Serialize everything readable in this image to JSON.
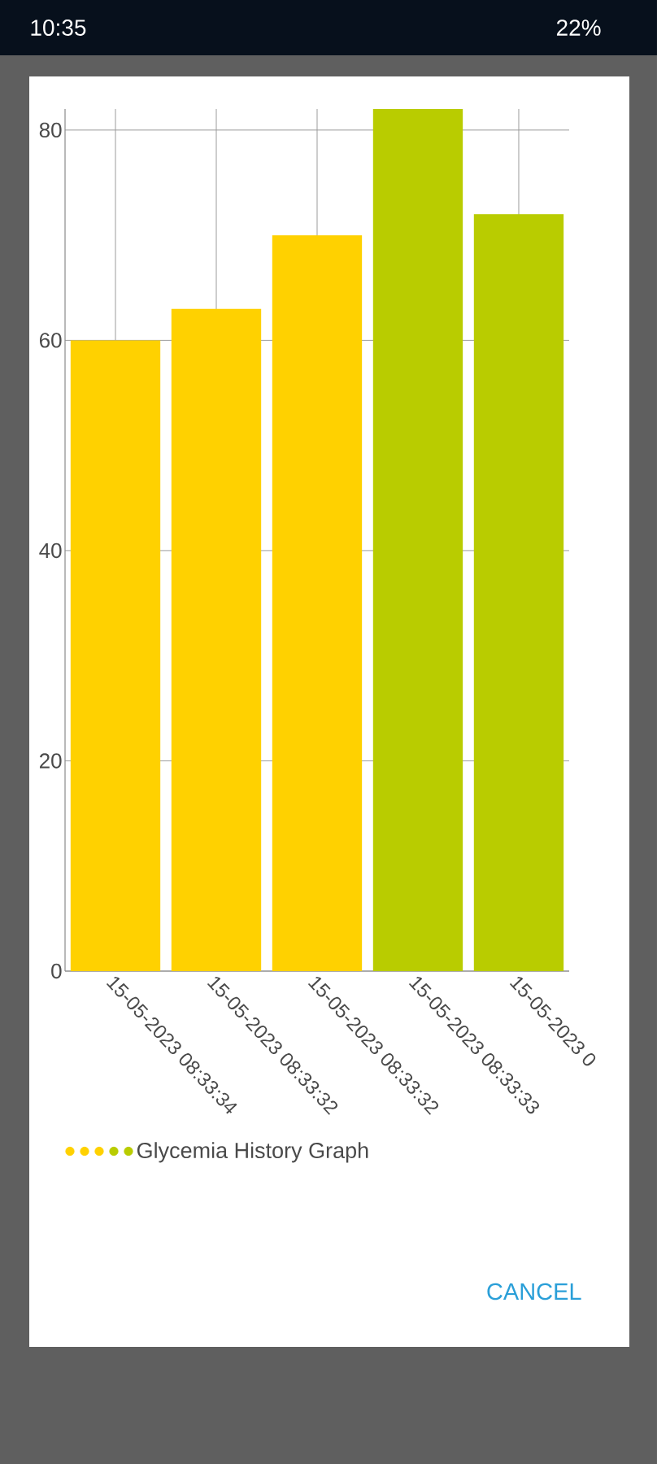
{
  "chart_data": {
    "type": "bar",
    "categories": [
      "15-05-2023 08:33:34",
      "15-05-2023 08:33:32",
      "15-05-2023 08:33:32",
      "15-05-2023 08:33:33",
      "15-05-2023 0"
    ],
    "series": [
      {
        "name": "Glycemia History Graph",
        "colors": [
          "#ffd100",
          "#ffd100",
          "#ffd100",
          "#b9cc00",
          "#b9cc00"
        ],
        "values": [
          60,
          63,
          70,
          82,
          72
        ]
      }
    ],
    "ylim": [
      0,
      82
    ],
    "yticks": [
      0,
      20,
      40,
      60,
      80
    ],
    "grid": true,
    "legend": "bottom left",
    "annotations": [
      "10:35",
      "22%",
      "CANCEL"
    ]
  }
}
